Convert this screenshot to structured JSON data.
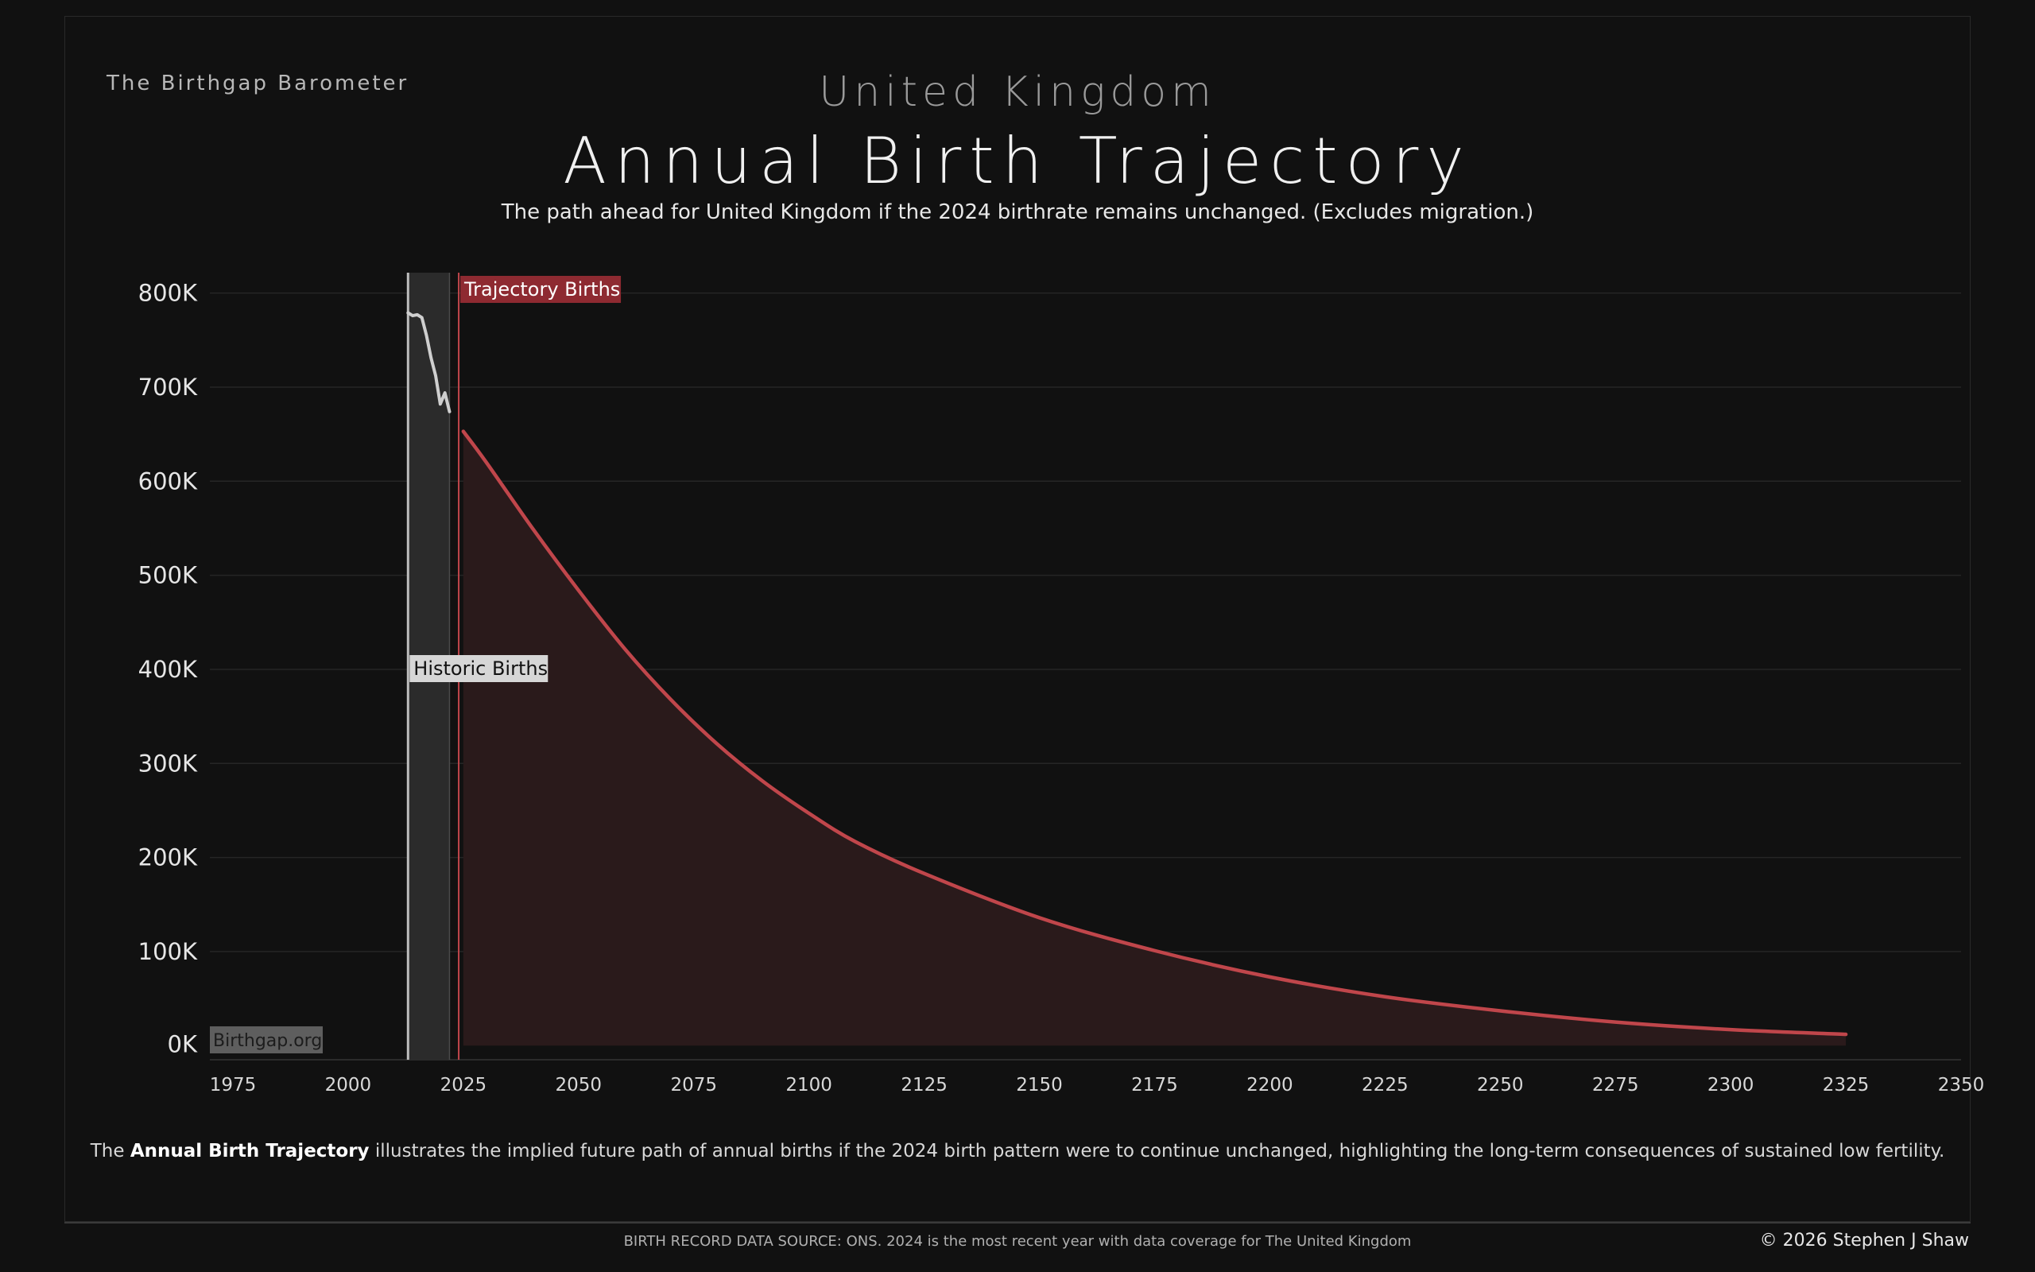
{
  "brand": "The Birthgap Barometer",
  "country": "United Kingdom",
  "title": "Annual Birth Trajectory",
  "subtitle": "The path ahead for United Kingdom if the 2024 birthrate remains unchanged.  (Excludes migration.)",
  "caption": {
    "prefix": "The ",
    "bold": "Annual Birth Trajectory",
    "suffix": " illustrates the implied future path of annual births if the 2024 birth pattern were to continue unchanged, highlighting the long-term consequences of sustained low fertility."
  },
  "source": "BIRTH RECORD DATA SOURCE: ONS. 2024 is the most recent year with data coverage for The United Kingdom",
  "copyright": "© 2026 Stephen J Shaw",
  "watermark": "Birthgap.org",
  "colors": {
    "background": "#111111",
    "trajectory": "#c0464b",
    "trajectory_fill": "#2a1a1b",
    "historic": "#cfcfcf",
    "historic_band": "#2b2b2b",
    "trajectory_label_bg": "#8e2a31",
    "historic_label_bg": "#d6d6d6"
  },
  "chart_data": {
    "type": "area",
    "xlim": [
      1970,
      2350
    ],
    "ylim": [
      -15000,
      820000
    ],
    "x_ticks": [
      1975,
      2000,
      2025,
      2050,
      2075,
      2100,
      2125,
      2150,
      2175,
      2200,
      2225,
      2250,
      2275,
      2300,
      2325,
      2350
    ],
    "y_ticks": [
      0,
      100000,
      200000,
      300000,
      400000,
      500000,
      600000,
      700000,
      800000
    ],
    "y_tick_labels": [
      "0K",
      "100K",
      "200K",
      "300K",
      "400K",
      "500K",
      "600K",
      "700K",
      "800K"
    ],
    "grid": true,
    "historic_band": [
      2013,
      2022
    ],
    "trajectory_start_line": 2024,
    "series": [
      {
        "name": "Historic Births",
        "x": [
          2013,
          2014,
          2015,
          2016,
          2017,
          2018,
          2019,
          2020,
          2021,
          2022
        ],
        "values": [
          779000,
          776000,
          777000,
          774000,
          755000,
          731000,
          712000,
          682000,
          694000,
          674000
        ]
      },
      {
        "name": "Trajectory Births",
        "x": [
          2025,
          2030,
          2040,
          2050,
          2060,
          2070,
          2080,
          2090,
          2100,
          2110,
          2125,
          2150,
          2175,
          2200,
          2225,
          2250,
          2275,
          2300,
          2325
        ],
        "values": [
          653000,
          620000,
          550000,
          484000,
          422000,
          368000,
          321000,
          281000,
          247000,
          217000,
          183000,
          136000,
          101000,
          73000,
          52000,
          37000,
          25000,
          17000,
          12000
        ]
      }
    ]
  }
}
